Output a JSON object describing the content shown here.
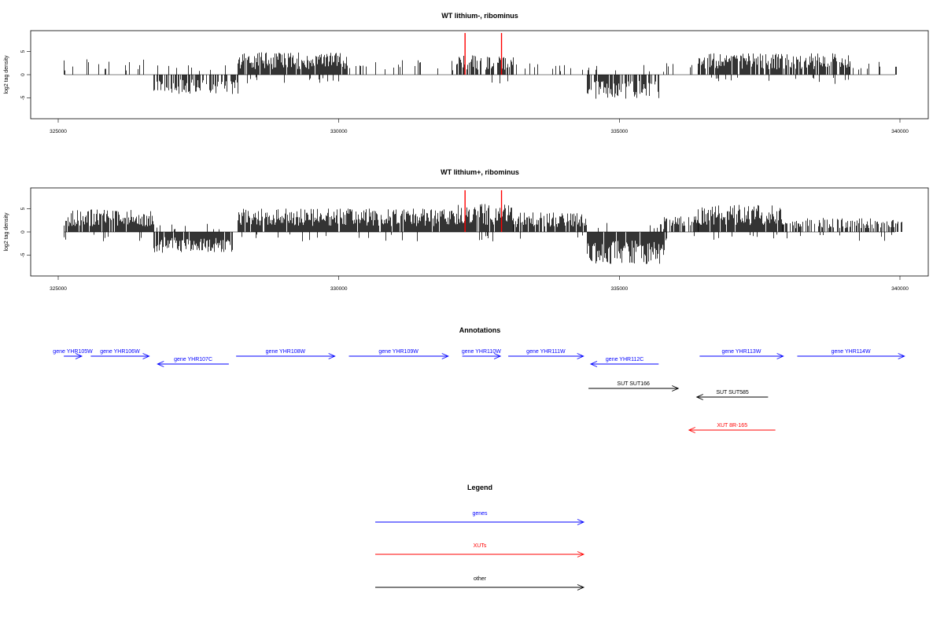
{
  "colors": {
    "gene": "#0000ff",
    "xut": "#ff0000",
    "other": "#000000",
    "marker": "#ff0000"
  },
  "chart_data": [
    {
      "type": "bar",
      "title": "WT lithium-, ribominus",
      "ylabel": "log2 tag density",
      "xlim": [
        325000,
        340000
      ],
      "ylim": [
        -9.5,
        9.5
      ],
      "x_ticks": [
        325000,
        330000,
        335000,
        340000
      ],
      "y_ticks": [
        -5,
        0,
        5
      ],
      "markers": [
        {
          "x": 332250,
          "y": 9
        },
        {
          "x": 332900,
          "y": 9
        }
      ],
      "segments": [
        {
          "start": 325100,
          "end": 326700,
          "level": 2.5,
          "density": 0.15
        },
        {
          "start": 326700,
          "end": 328200,
          "level": -3.0,
          "density": 0.6
        },
        {
          "start": 328200,
          "end": 330150,
          "level": 3.5,
          "density": 0.95
        },
        {
          "start": 330150,
          "end": 332100,
          "level": 2.3,
          "density": 0.15
        },
        {
          "start": 332100,
          "end": 333100,
          "level": 3.0,
          "density": 0.8
        },
        {
          "start": 333100,
          "end": 334400,
          "level": 1.8,
          "density": 0.12
        },
        {
          "start": 334400,
          "end": 335700,
          "level": -3.8,
          "density": 0.7
        },
        {
          "start": 335700,
          "end": 336400,
          "level": 1.8,
          "density": 0.12
        },
        {
          "start": 336400,
          "end": 339100,
          "level": 3.3,
          "density": 0.8
        },
        {
          "start": 339100,
          "end": 340000,
          "level": 2.2,
          "density": 0.15
        }
      ]
    },
    {
      "type": "bar",
      "title": "WT lithium+, ribominus",
      "ylabel": "log2 tag density",
      "xlim": [
        325000,
        340000
      ],
      "ylim": [
        -9.5,
        9.5
      ],
      "x_ticks": [
        325000,
        330000,
        335000,
        340000
      ],
      "y_ticks": [
        -5,
        0,
        5
      ],
      "markers": [
        {
          "x": 332250,
          "y": 9
        },
        {
          "x": 332900,
          "y": 9
        }
      ],
      "segments": [
        {
          "start": 325100,
          "end": 326700,
          "level": 3.5,
          "density": 0.9
        },
        {
          "start": 326700,
          "end": 328100,
          "level": -3.2,
          "density": 0.9
        },
        {
          "start": 328200,
          "end": 332100,
          "level": 3.6,
          "density": 0.95
        },
        {
          "start": 332100,
          "end": 333100,
          "level": 4.3,
          "density": 0.95
        },
        {
          "start": 333100,
          "end": 334400,
          "level": 3.0,
          "density": 0.85
        },
        {
          "start": 334400,
          "end": 335800,
          "level": -5.0,
          "density": 0.95
        },
        {
          "start": 335800,
          "end": 336400,
          "level": 2.5,
          "density": 0.6
        },
        {
          "start": 336400,
          "end": 337900,
          "level": 4.2,
          "density": 0.95
        },
        {
          "start": 337900,
          "end": 340050,
          "level": 2.2,
          "density": 0.6
        }
      ]
    }
  ],
  "annotations": {
    "title": "Annotations",
    "features": [
      {
        "label": "gene YHR105W",
        "start": 325100,
        "end": 325420,
        "strand": "+",
        "type": "gene",
        "row": 0
      },
      {
        "label": "gene YHR106W",
        "start": 325580,
        "end": 326620,
        "strand": "+",
        "type": "gene",
        "row": 0
      },
      {
        "label": "gene YHR107C",
        "start": 326770,
        "end": 328040,
        "strand": "-",
        "type": "gene",
        "row": 1
      },
      {
        "label": "gene YHR108W",
        "start": 328170,
        "end": 329930,
        "strand": "+",
        "type": "gene",
        "row": 0
      },
      {
        "label": "gene YHR109W",
        "start": 330180,
        "end": 331950,
        "strand": "+",
        "type": "gene",
        "row": 0
      },
      {
        "label": "gene YHR110W",
        "start": 332200,
        "end": 332880,
        "strand": "+",
        "type": "gene",
        "row": 0
      },
      {
        "label": "gene YHR111W",
        "start": 333020,
        "end": 334360,
        "strand": "+",
        "type": "gene",
        "row": 0
      },
      {
        "label": "gene YHR112C",
        "start": 334490,
        "end": 335700,
        "strand": "-",
        "type": "gene",
        "row": 1
      },
      {
        "label": "gene YHR113W",
        "start": 336430,
        "end": 337920,
        "strand": "+",
        "type": "gene",
        "row": 0
      },
      {
        "label": "gene YHR114W",
        "start": 338170,
        "end": 340080,
        "strand": "+",
        "type": "gene",
        "row": 0
      },
      {
        "label": "SUT SUT166",
        "start": 334450,
        "end": 336050,
        "strand": "+",
        "type": "other",
        "row": 2
      },
      {
        "label": "SUT SUT585",
        "start": 336380,
        "end": 337650,
        "strand": "-",
        "type": "other",
        "row": 3
      },
      {
        "label": "XUT 8R-165",
        "start": 336240,
        "end": 337780,
        "strand": "-",
        "type": "xut",
        "row": 4
      }
    ]
  },
  "legend": {
    "title": "Legend",
    "items": [
      {
        "label": "genes",
        "type": "gene"
      },
      {
        "label": "XUTs",
        "type": "xut"
      },
      {
        "label": "other",
        "type": "other"
      }
    ]
  }
}
